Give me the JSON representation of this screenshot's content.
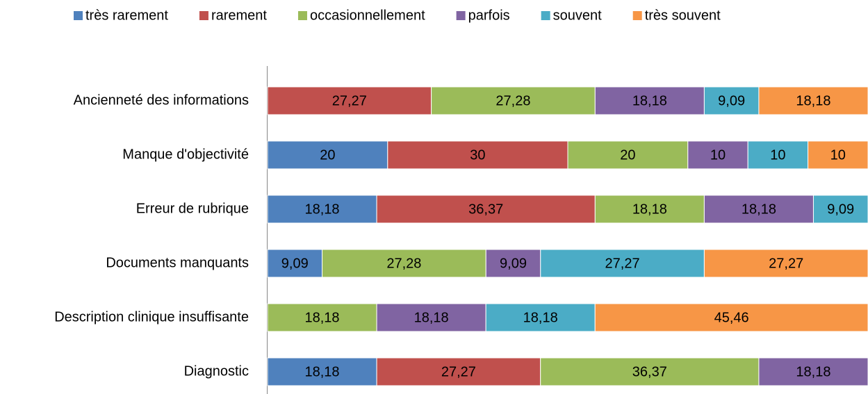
{
  "chart_data": {
    "type": "stacked_bar_horizontal_percent",
    "categories": [
      "Ancienneté des informations",
      "Manque d'objectivité",
      "Erreur de rubrique",
      "Documents manquants",
      "Description clinique insuffisante",
      "Diagnostic"
    ],
    "xlim": [
      0,
      100
    ],
    "series": [
      {
        "name": "très rarement",
        "color": "#4f81bd",
        "values": [
          null,
          20,
          18.18,
          9.09,
          null,
          18.18
        ],
        "value_labels": [
          null,
          "20",
          "18,18",
          "9,09",
          null,
          "18,18"
        ]
      },
      {
        "name": "rarement",
        "color": "#c0504d",
        "values": [
          27.27,
          30,
          36.37,
          null,
          null,
          27.27
        ],
        "value_labels": [
          "27,27",
          "30",
          "36,37",
          null,
          null,
          "27,27"
        ]
      },
      {
        "name": "occasionnellement",
        "color": "#9bbb59",
        "values": [
          27.28,
          20,
          18.18,
          27.28,
          18.18,
          36.37
        ],
        "value_labels": [
          "27,28",
          "20",
          "18,18",
          "27,28",
          "18,18",
          "36,37"
        ]
      },
      {
        "name": "parfois",
        "color": "#8064a2",
        "values": [
          18.18,
          10,
          18.18,
          9.09,
          18.18,
          18.18
        ],
        "value_labels": [
          "18,18",
          "10",
          "18,18",
          "9,09",
          "18,18",
          "18,18"
        ]
      },
      {
        "name": "souvent",
        "color": "#4bacc6",
        "values": [
          9.09,
          10,
          9.09,
          27.27,
          18.18,
          null
        ],
        "value_labels": [
          "9,09",
          "10",
          "9,09",
          "27,27",
          "18,18",
          null
        ]
      },
      {
        "name": "très souvent",
        "color": "#f79646",
        "values": [
          18.18,
          10,
          null,
          27.27,
          45.46,
          null
        ],
        "value_labels": [
          "18,18",
          "10",
          null,
          "27,27",
          "45,46",
          null
        ]
      }
    ]
  }
}
